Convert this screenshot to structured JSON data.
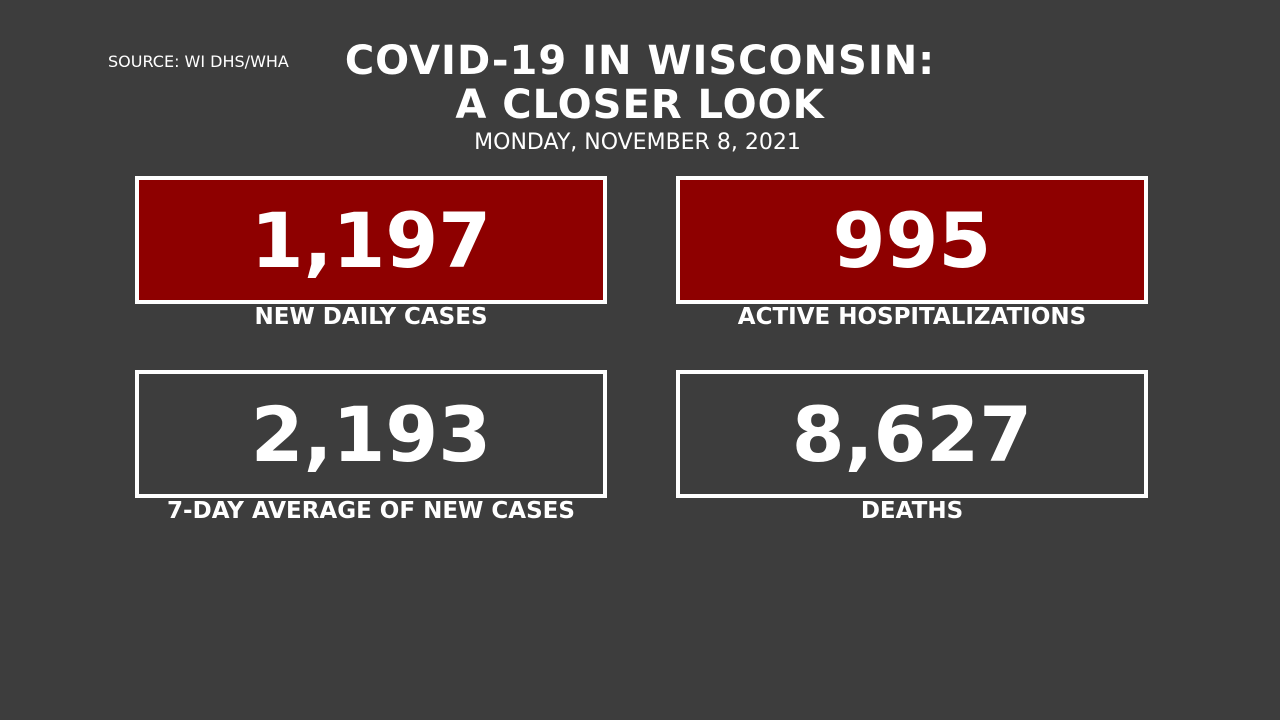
{
  "header": {
    "source": "SOURCE: WI DHS/WHA",
    "title_line1": "COVID-19 IN WISCONSIN:",
    "title_line2": "A CLOSER LOOK",
    "date": "MONDAY, NOVEMBER 8, 2021"
  },
  "stats": [
    {
      "value": "1,197",
      "label": "NEW DAILY CASES",
      "highlight": true
    },
    {
      "value": "995",
      "label": "ACTIVE HOSPITALIZATIONS",
      "highlight": true
    },
    {
      "value": "2,193",
      "label": "7-DAY AVERAGE OF NEW CASES",
      "highlight": false
    },
    {
      "value": "8,627",
      "label": "DEATHS",
      "highlight": false
    }
  ]
}
